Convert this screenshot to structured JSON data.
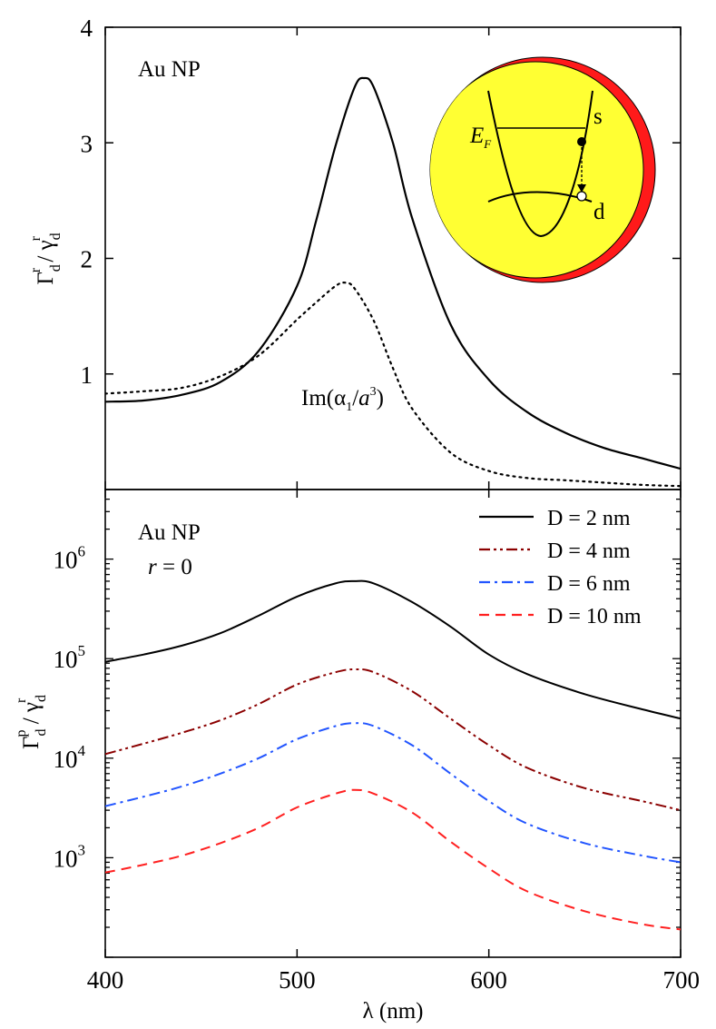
{
  "chart_data": [
    {
      "type": "line",
      "panel": "top",
      "title": "Au NP",
      "xlabel": "",
      "ylabel": {
        "main": "Γ",
        "sub": "d",
        "sup": "r",
        "sep": " / ",
        "main2": "γ",
        "sub2": "d",
        "sup2": "r"
      },
      "xlim": [
        400,
        700
      ],
      "ylim": [
        0,
        4
      ],
      "yticks": [
        1,
        2,
        3,
        4
      ],
      "ytick_labels": [
        "1",
        "2",
        "3",
        "4"
      ],
      "annotation": {
        "pre": "Im(α",
        "sub": "1",
        "mid": "/",
        "ital": "a",
        "sup": "3",
        "post": ")"
      },
      "inset": {
        "ef_label": "E",
        "ef_sub": "F",
        "s_label": "s",
        "d_label": "d",
        "colors": {
          "sphere": "#ffff33",
          "rim": "#ff1a1a"
        }
      },
      "series": [
        {
          "name": "Γd^r/γd^r",
          "style": "solid",
          "color": "#000000",
          "x": [
            400,
            420,
            440,
            460,
            480,
            500,
            510,
            520,
            530,
            535,
            540,
            550,
            560,
            580,
            600,
            620,
            640,
            660,
            680,
            700
          ],
          "y": [
            0.76,
            0.77,
            0.82,
            0.93,
            1.2,
            1.76,
            2.33,
            2.97,
            3.48,
            3.56,
            3.48,
            3.0,
            2.35,
            1.43,
            0.95,
            0.67,
            0.49,
            0.36,
            0.27,
            0.18
          ]
        },
        {
          "name": "Im(α1/a^3)",
          "style": "dotted",
          "color": "#000000",
          "x": [
            400,
            420,
            440,
            460,
            480,
            500,
            510,
            520,
            525,
            530,
            540,
            550,
            560,
            580,
            600,
            620,
            640,
            660,
            680,
            700
          ],
          "y": [
            0.83,
            0.85,
            0.88,
            0.98,
            1.16,
            1.47,
            1.62,
            1.76,
            1.79,
            1.74,
            1.46,
            1.05,
            0.7,
            0.32,
            0.16,
            0.1,
            0.08,
            0.06,
            0.04,
            0.03
          ]
        }
      ]
    },
    {
      "type": "line",
      "panel": "bottom",
      "title": "Au NP",
      "subtitle": {
        "var": "r",
        "rest": " = 0",
        "color": "#1f3fff"
      },
      "xlabel": {
        "sym": "λ",
        "rest": " (nm)"
      },
      "ylabel": {
        "main": "Γ",
        "sub": "d",
        "sup": "p",
        "sep": " / ",
        "main2": "γ",
        "sub2": "d",
        "sup2": "r"
      },
      "xlim": [
        400,
        700
      ],
      "ylim": [
        100,
        5000000
      ],
      "yscale": "log",
      "xticks": [
        400,
        500,
        600,
        700
      ],
      "xtick_labels": [
        "400",
        "500",
        "600",
        "700"
      ],
      "yticks": [
        {
          "base": "10",
          "exp": "3",
          "value": 1000
        },
        {
          "base": "10",
          "exp": "4",
          "value": 10000
        },
        {
          "base": "10",
          "exp": "5",
          "value": 100000
        },
        {
          "base": "10",
          "exp": "6",
          "value": 1000000
        }
      ],
      "legend": "top-right",
      "series": [
        {
          "name": "D = 2 nm",
          "style": "solid",
          "color": "#000000",
          "x": [
            400,
            420,
            440,
            460,
            480,
            500,
            520,
            530,
            540,
            560,
            580,
            600,
            620,
            650,
            680,
            700
          ],
          "y": [
            93000,
            110000,
            135000,
            180000,
            270000,
            420000,
            570000,
            600000,
            570000,
            370000,
            210000,
            110000,
            70000,
            44000,
            31000,
            25000
          ]
        },
        {
          "name": "D = 4 nm",
          "style": "dashdotdot",
          "color": "#8b0000",
          "x": [
            400,
            420,
            440,
            460,
            480,
            500,
            520,
            530,
            540,
            560,
            580,
            600,
            620,
            650,
            680,
            700
          ],
          "y": [
            11000,
            14000,
            18000,
            24000,
            35000,
            55000,
            73000,
            78000,
            73000,
            47000,
            25000,
            13500,
            8000,
            5000,
            3700,
            3000
          ]
        },
        {
          "name": "D = 6 nm",
          "style": "dashdot",
          "color": "#2255ff",
          "x": [
            400,
            420,
            440,
            460,
            480,
            500,
            520,
            530,
            540,
            560,
            580,
            600,
            620,
            650,
            680,
            700
          ],
          "y": [
            3300,
            4100,
            5200,
            7000,
            10000,
            15500,
            21000,
            22500,
            21000,
            13500,
            7000,
            3700,
            2200,
            1400,
            1050,
            900
          ]
        },
        {
          "name": "D = 10 nm",
          "style": "dashed",
          "color": "#ff2020",
          "x": [
            400,
            420,
            440,
            460,
            480,
            500,
            520,
            530,
            540,
            560,
            580,
            600,
            620,
            650,
            680,
            700
          ],
          "y": [
            710,
            850,
            1050,
            1400,
            2000,
            3200,
            4400,
            4800,
            4400,
            2850,
            1450,
            780,
            460,
            290,
            215,
            190
          ]
        }
      ]
    }
  ]
}
